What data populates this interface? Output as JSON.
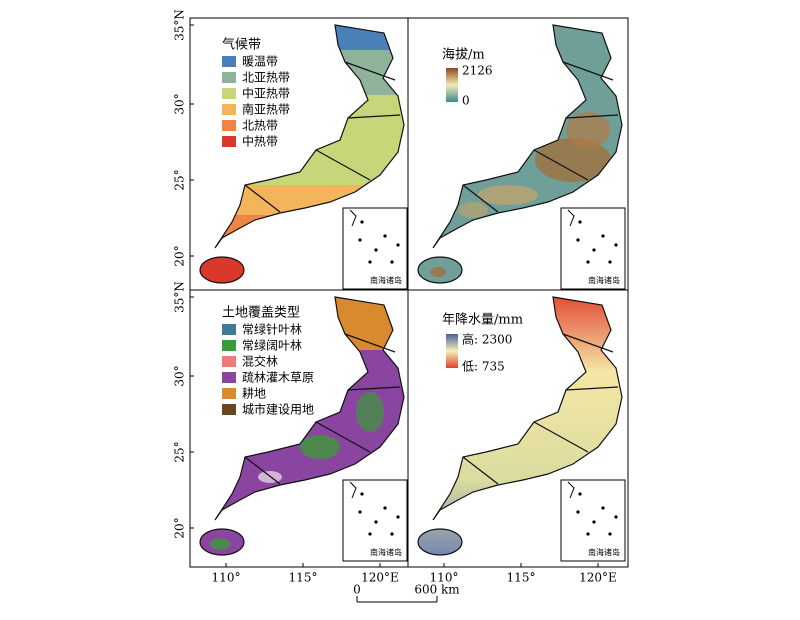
{
  "map_panels": {
    "lat_labels": [
      "35°N",
      "30°",
      "25°",
      "20°"
    ],
    "lon_labels": [
      "110°",
      "115°",
      "120°E"
    ],
    "climate_legend": {
      "title": "气候带",
      "items": [
        {
          "label": "暖温带",
          "color": "#4a80b8"
        },
        {
          "label": "北亚热带",
          "color": "#8fb39a"
        },
        {
          "label": "中亚热带",
          "color": "#c8d67a"
        },
        {
          "label": "南亚热带",
          "color": "#f2b55c"
        },
        {
          "label": "北热带",
          "color": "#ee8547"
        },
        {
          "label": "中热带",
          "color": "#d9382a"
        }
      ]
    },
    "elevation_legend": {
      "title": "海拔/m",
      "max_label": "2126",
      "min_label": "0"
    },
    "landcover_legend": {
      "title": "土地覆盖类型",
      "items": [
        {
          "label": "常绿针叶林",
          "color": "#3f7a99"
        },
        {
          "label": "常绿阔叶林",
          "color": "#3d9a3a"
        },
        {
          "label": "混交林",
          "color": "#ef7a7a"
        },
        {
          "label": "疏林灌木草原",
          "color": "#8a45a0"
        },
        {
          "label": "耕地",
          "color": "#d98a2e"
        },
        {
          "label": "城市建设用地",
          "color": "#6b4420"
        }
      ]
    },
    "precip_legend": {
      "title": "年降水量/mm",
      "high_label": "高: 2300",
      "low_label": "低: 735"
    },
    "inset_label": "南海诸岛",
    "scale_bar": {
      "start_label": "0",
      "end_label": "600 km"
    }
  }
}
